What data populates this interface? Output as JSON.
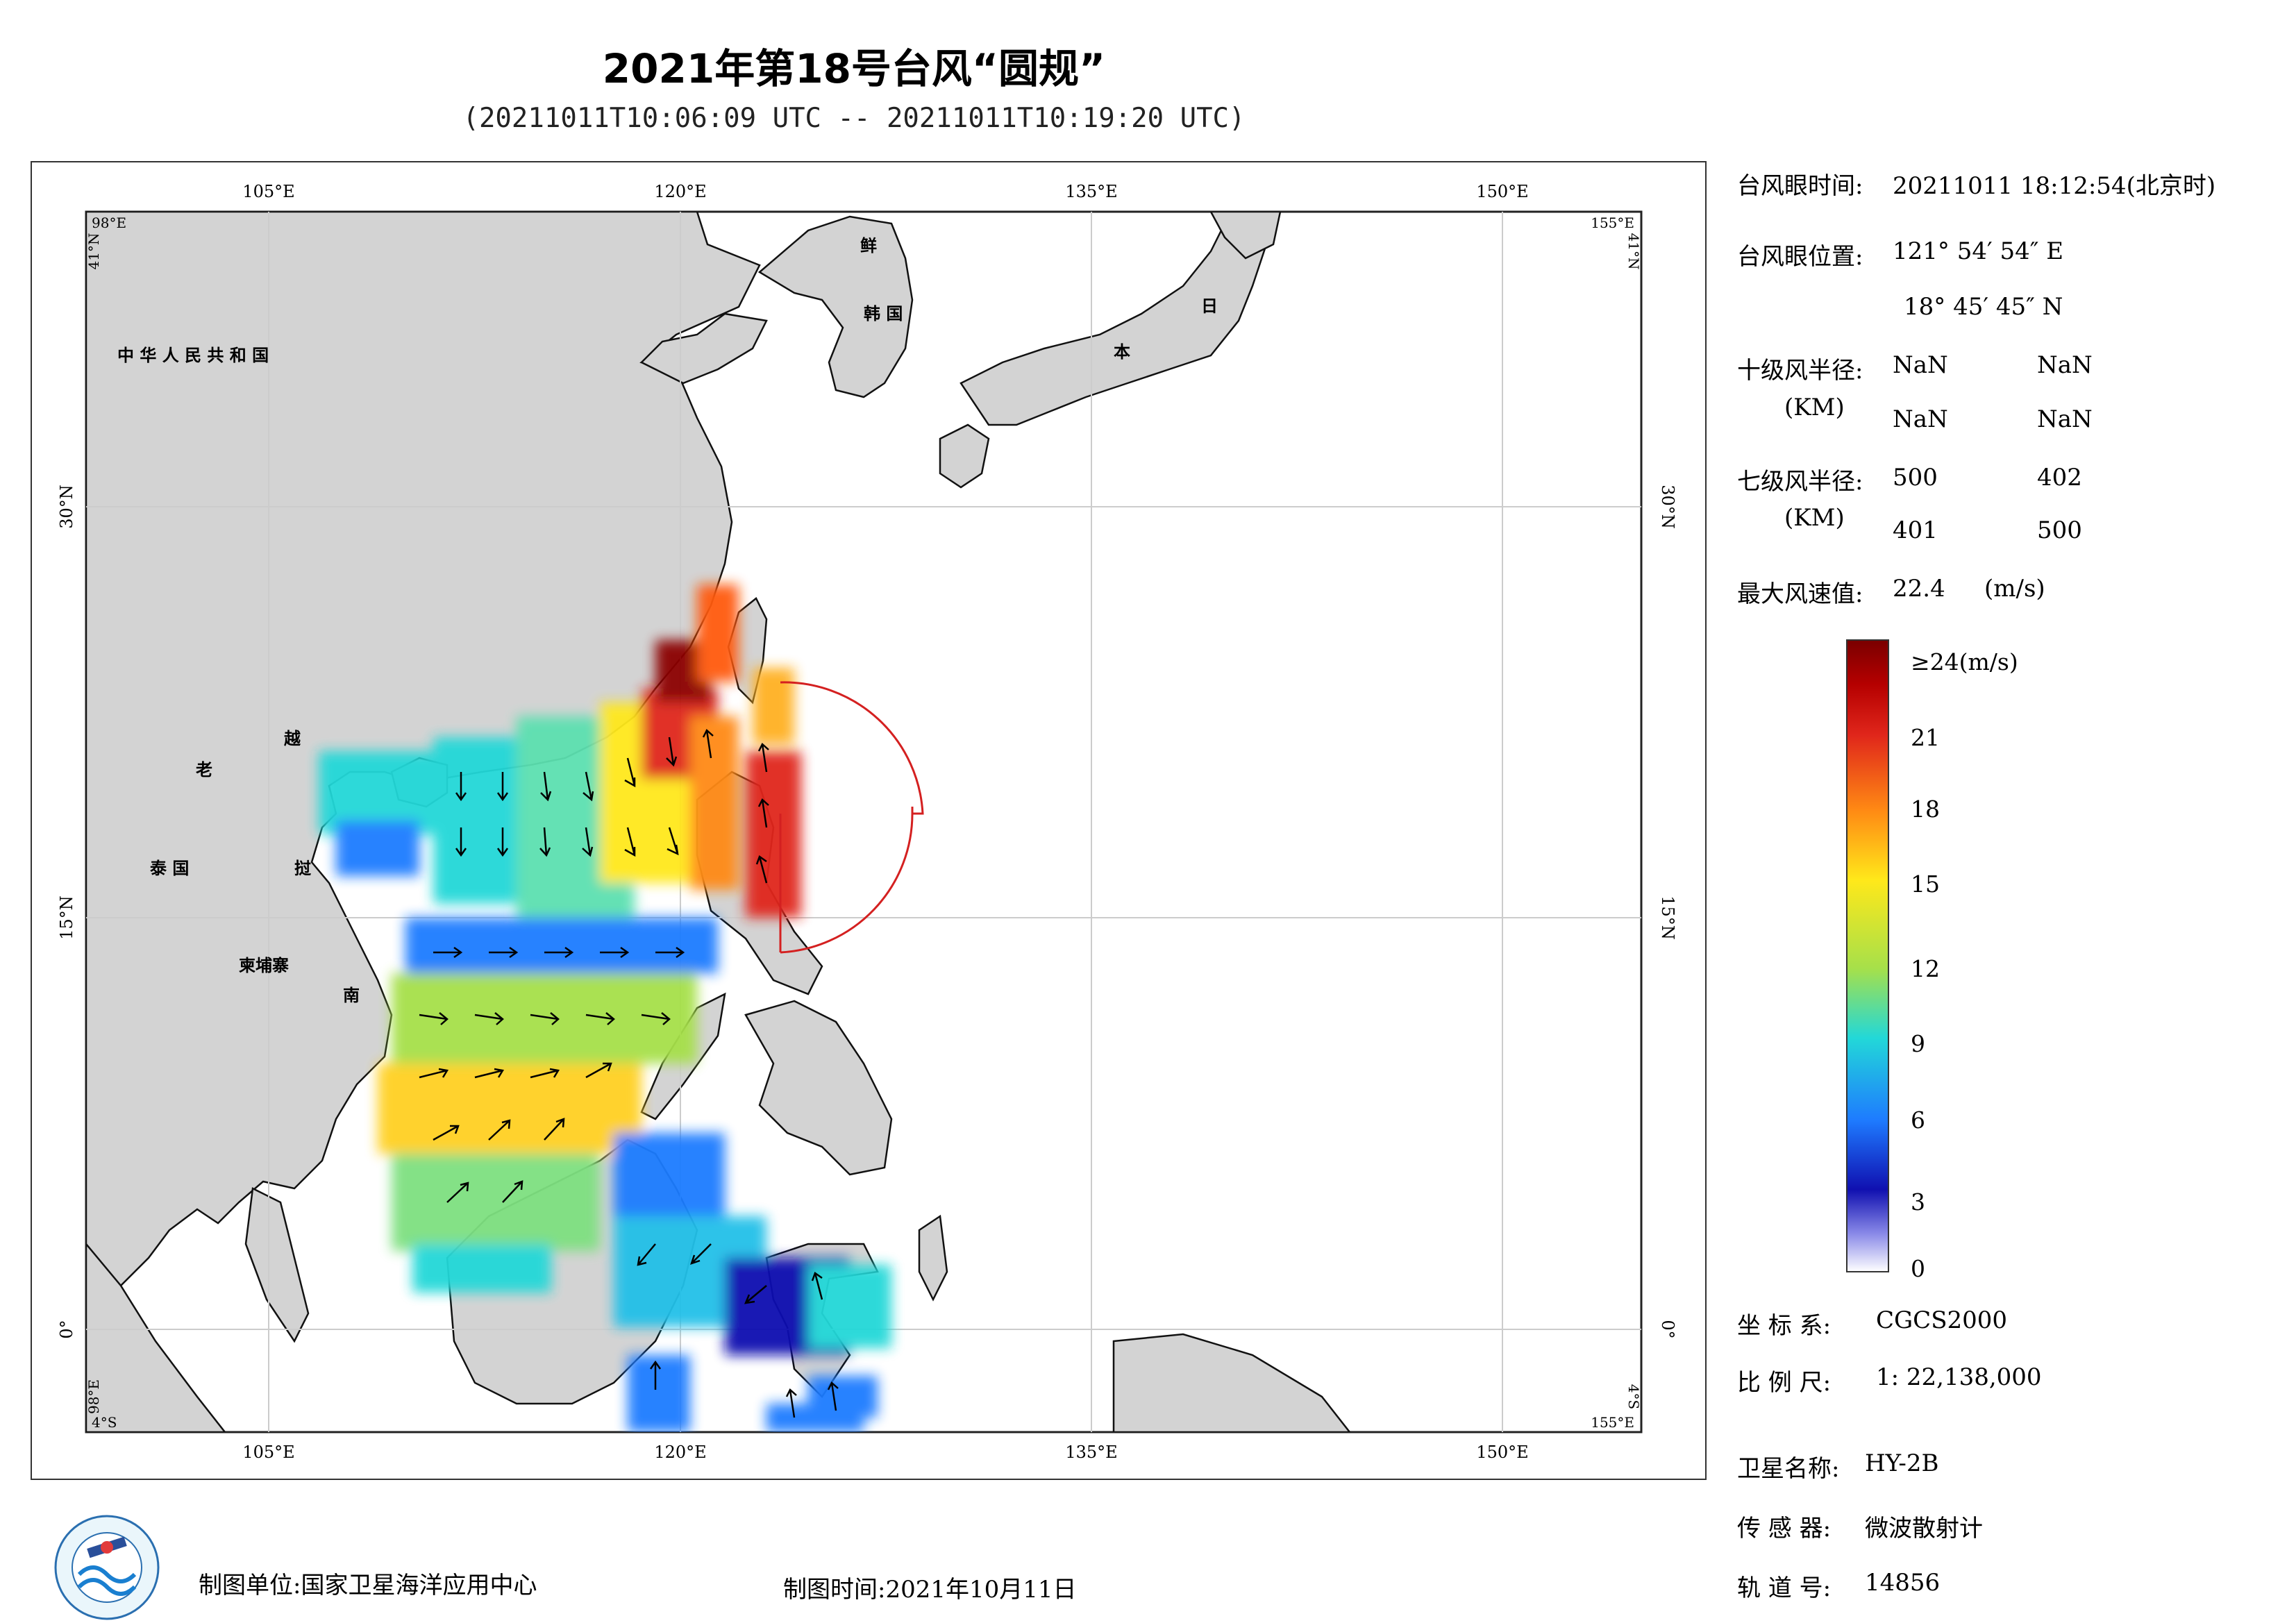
{
  "title": "2021年第18号台风“圆规”",
  "subtitle": "(20211011T10:06:09 UTC -- 20211011T10:19:20 UTC)",
  "map": {
    "lon_ticks": [
      "105°E",
      "120°E",
      "135°E",
      "150°E"
    ],
    "lat_ticks_left": [
      "30°N",
      "15°N",
      "0°"
    ],
    "lat_ticks_right": [
      "30°N",
      "15°N",
      "0°"
    ],
    "corners": {
      "top_left_lon": "98°E",
      "top_left_lat": "41°N",
      "top_right_lon": "155°E",
      "top_right_lat": "41°N",
      "bottom_left_lon": "98°E",
      "bottom_left_lat": "4°S",
      "bottom_right_lon": "155°E",
      "bottom_right_lat": "4°S"
    },
    "place_labels": [
      "中 华 人 民 共 和 国",
      "老",
      "越",
      "泰 国",
      "挝",
      "柬埔寨",
      "南",
      "鲜",
      "韩 国",
      "日",
      "本"
    ]
  },
  "info": {
    "eye_time_label": "台风眼时间:",
    "eye_time_value": "20211011  18:12:54(北京时)",
    "eye_pos_label": "台风眼位置:",
    "eye_lon": "121° 54′ 54″ E",
    "eye_lat": "18° 45′ 45″ N",
    "r10_label": "十级风半径:",
    "r10_unit": "(KM)",
    "r10_values": [
      "NaN",
      "NaN",
      "NaN",
      "NaN"
    ],
    "r7_label": "七级风半径:",
    "r7_unit": "(KM)",
    "r7_values": [
      "500",
      "402",
      "401",
      "500"
    ],
    "max_wind_label": "最大风速值:",
    "max_wind_value": "22.4",
    "max_wind_unit": "(m/s)"
  },
  "legend": {
    "labels": [
      "≥24(m/s)",
      "21",
      "18",
      "15",
      "12",
      "9",
      "6",
      "3",
      "0"
    ],
    "colors": [
      "#8b0000",
      "#e0261b",
      "#ff8a14",
      "#ffe81a",
      "#a6e04a",
      "#22d8d8",
      "#1e7bff",
      "#1010b0",
      "#ffffff"
    ]
  },
  "meta": {
    "crs_label": "坐 标 系:",
    "crs_value": "CGCS2000",
    "scale_label": "比 例 尺:",
    "scale_value": "1: 22,138,000",
    "sat_label": "卫星名称:",
    "sat_value": "HY-2B",
    "sensor_label": "传 感 器:",
    "sensor_value": "微波散射计",
    "orbit_label": "轨 道 号:",
    "orbit_value": "14856"
  },
  "footer": {
    "unit_label": "制图单位:",
    "unit_value": "国家卫星海洋应用中心",
    "time_label": "制图时间:",
    "time_value": "2021年10月11日"
  },
  "colors": {
    "land": "#d3d3d3",
    "sea": "#ffffff",
    "typhoon_circle": "#d42020"
  }
}
